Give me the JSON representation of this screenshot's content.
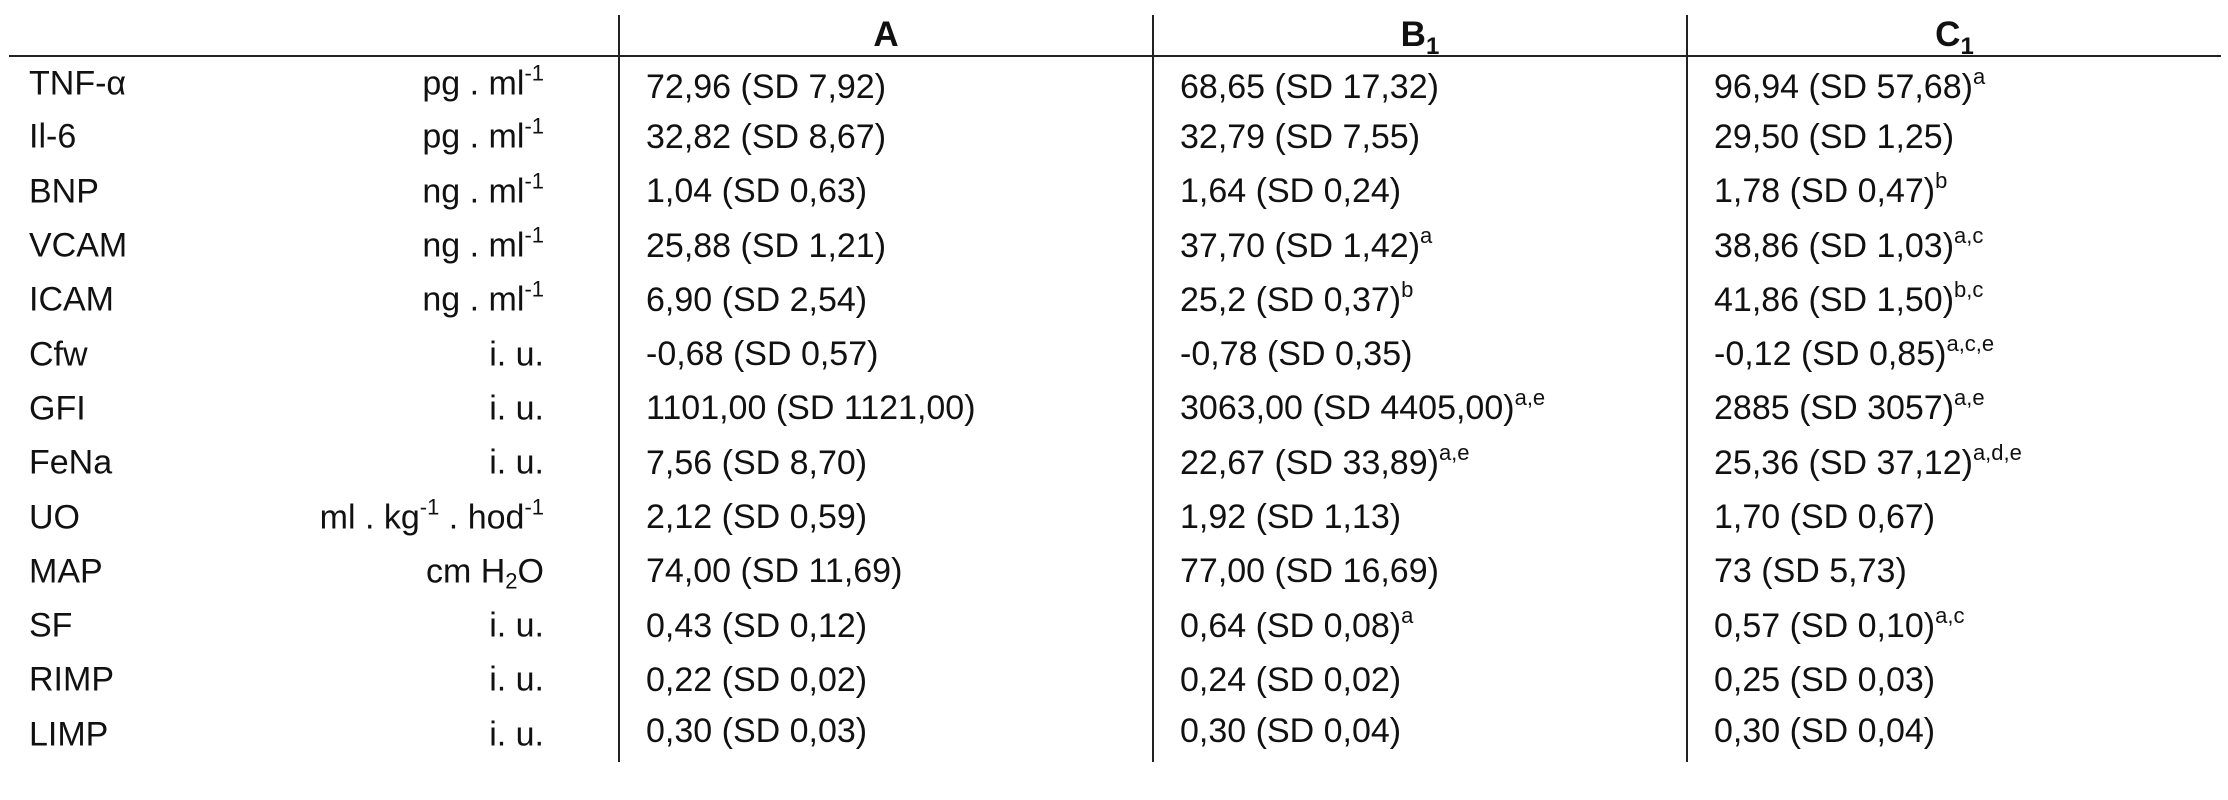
{
  "headers": {
    "col_a": "A",
    "col_b_base": "B",
    "col_b_sub": "1",
    "col_c_base": "C",
    "col_c_sub": "1"
  },
  "rows": [
    {
      "name": "TNF-α",
      "unit_pre": "pg . ml",
      "unit_sup": "-1",
      "a": "72,96 (SD 7,92)",
      "a_sup": "",
      "b": "68,65 (SD 17,32)",
      "b_sup": "",
      "c": "96,94 (SD 57,68)",
      "c_sup": "a"
    },
    {
      "name": "Il-6",
      "unit_pre": "pg . ml",
      "unit_sup": "-1",
      "a": "32,82 (SD 8,67)",
      "a_sup": "",
      "b": "32,79 (SD 7,55)",
      "b_sup": "",
      "c": "29,50 (SD 1,25)",
      "c_sup": ""
    },
    {
      "name": "BNP",
      "unit_pre": "ng . ml",
      "unit_sup": "-1",
      "a": "1,04 (SD 0,63)",
      "a_sup": "",
      "b": "1,64 (SD 0,24)",
      "b_sup": "",
      "c": "1,78 (SD 0,47)",
      "c_sup": "b"
    },
    {
      "name": "VCAM",
      "unit_pre": "ng . ml",
      "unit_sup": "-1",
      "a": "25,88 (SD 1,21)",
      "a_sup": "",
      "b": "37,70 (SD 1,42)",
      "b_sup": "a",
      "c": "38,86 (SD 1,03)",
      "c_sup": "a,c"
    },
    {
      "name": "ICAM",
      "unit_pre": "ng . ml",
      "unit_sup": "-1",
      "a": "6,90 (SD 2,54)",
      "a_sup": "",
      "b": "25,2 (SD 0,37)",
      "b_sup": "b",
      "c": "41,86 (SD 1,50)",
      "c_sup": "b,c"
    },
    {
      "name": "Cfw",
      "unit_pre": "i. u.",
      "unit_sup": "",
      "a": "-0,68 (SD 0,57)",
      "a_sup": "",
      "b": "-0,78 (SD 0,35)",
      "b_sup": "",
      "c": "-0,12 (SD 0,85)",
      "c_sup": "a,c,e"
    },
    {
      "name": "GFI",
      "unit_pre": "i. u.",
      "unit_sup": "",
      "a": "1101,00 (SD 1121,00)",
      "a_sup": "",
      "b": "3063,00 (SD 4405,00)",
      "b_sup": "a,e",
      "c": "2885 (SD 3057)",
      "c_sup": "a,e"
    },
    {
      "name": "FeNa",
      "unit_pre": "i. u.",
      "unit_sup": "",
      "a": "7,56 (SD 8,70)",
      "a_sup": "",
      "b": "22,67 (SD 33,89)",
      "b_sup": "a,e",
      "c": "25,36 (SD 37,12)",
      "c_sup": "a,d,e"
    },
    {
      "name": "UO",
      "unit_special": "uo",
      "unit_p1": "ml . kg",
      "unit_s1": "-1",
      "unit_p2": " . hod",
      "unit_s2": "-1",
      "a": "2,12 (SD 0,59)",
      "a_sup": "",
      "b": "1,92 (SD 1,13)",
      "b_sup": "",
      "c": "1,70 (SD 0,67)",
      "c_sup": ""
    },
    {
      "name": "MAP",
      "unit_special": "map",
      "unit_p1": "cm H",
      "unit_sub": "2",
      "unit_p2": "O",
      "a": "74,00 (SD 11,69)",
      "a_sup": "",
      "b": "77,00 (SD 16,69)",
      "b_sup": "",
      "c": "73 (SD 5,73)",
      "c_sup": ""
    },
    {
      "name": "SF",
      "unit_pre": "i. u.",
      "unit_sup": "",
      "a": "0,43 (SD 0,12)",
      "a_sup": "",
      "b": "0,64 (SD 0,08)",
      "b_sup": "a",
      "c": "0,57 (SD 0,10)",
      "c_sup": "a,c"
    },
    {
      "name": "RIMP",
      "unit_pre": "i. u.",
      "unit_sup": "",
      "a": "0,22 (SD 0,02)",
      "a_sup": "",
      "b": "0,24 (SD 0,02)",
      "b_sup": "",
      "c": "0,25 (SD 0,03)",
      "c_sup": ""
    },
    {
      "name": "LIMP",
      "unit_pre": "i. u.",
      "unit_sup": "",
      "a": "0,30 (SD 0,03)",
      "a_sup": "",
      "b": "0,30 (SD 0,04)",
      "b_sup": "",
      "c": "0,30 (SD 0,04)",
      "c_sup": ""
    }
  ]
}
